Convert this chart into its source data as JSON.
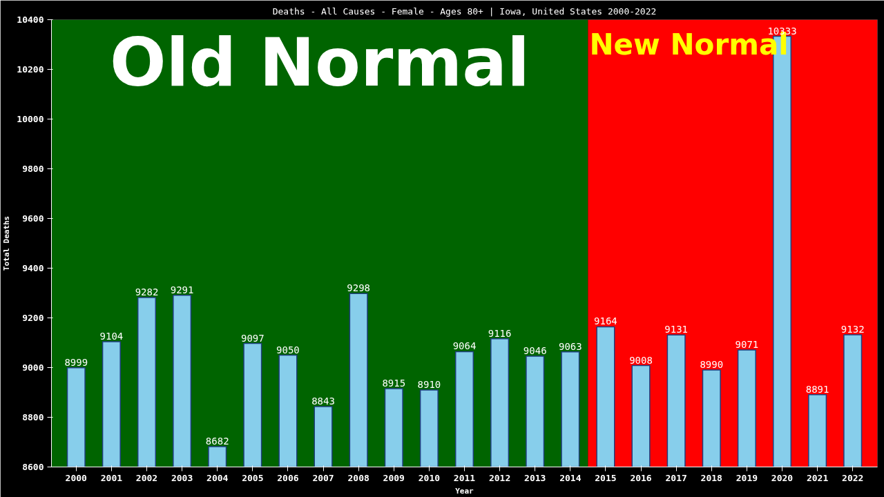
{
  "chart_data": {
    "type": "bar",
    "title": "Deaths - All Causes - Female - Ages 80+ | Iowa, United States 2000-2022",
    "xlabel": "Year",
    "ylabel": "Total Deaths",
    "x": [
      2000,
      2001,
      2002,
      2003,
      2004,
      2005,
      2006,
      2007,
      2008,
      2009,
      2010,
      2011,
      2012,
      2013,
      2014,
      2015,
      2016,
      2017,
      2018,
      2019,
      2020,
      2021,
      2022
    ],
    "values": [
      8999,
      9104,
      9282,
      9291,
      8682,
      9097,
      9050,
      8843,
      9298,
      8915,
      8910,
      9064,
      9116,
      9046,
      9063,
      9164,
      9008,
      9131,
      8990,
      9071,
      10333,
      8891,
      9132
    ],
    "color": "#87ceeb",
    "data_labels": true,
    "grid": false,
    "xlim": [
      1999.3,
      2022.7
    ],
    "xticks": [
      2000,
      2001,
      2002,
      2003,
      2004,
      2005,
      2006,
      2007,
      2008,
      2009,
      2010,
      2011,
      2012,
      2013,
      2014,
      2015,
      2016,
      2017,
      2018,
      2019,
      2020,
      2021,
      2022
    ],
    "ylim": [
      8600,
      10400
    ],
    "yticks": [
      8600,
      8800,
      9000,
      9200,
      9400,
      9600,
      9800,
      10000,
      10200,
      10400
    ],
    "bands": [
      {
        "axis": "x",
        "from": 1999.3,
        "to": 2014.5,
        "label": "Old Normal",
        "color": "#006400"
      },
      {
        "axis": "x",
        "from": 2014.5,
        "to": 2022.7,
        "label": "New Normal",
        "color": "#ff0000"
      }
    ]
  }
}
